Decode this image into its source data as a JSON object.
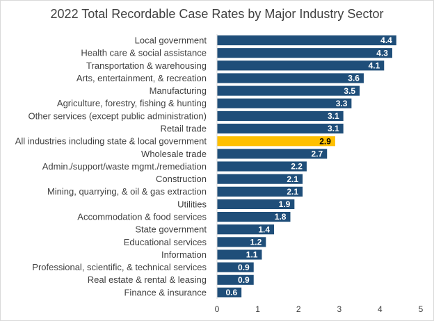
{
  "chart_data": {
    "type": "barh",
    "title": "2022 Total Recordable Case Rates by Major Industry Sector",
    "categories": [
      "Local government",
      "Health care & social assistance",
      "Transportation & warehousing",
      "Arts, entertainment, & recreation",
      "Manufacturing",
      "Agriculture, forestry, fishing & hunting",
      "Other services (except public administration)",
      "Retail trade",
      "All industries including state & local government",
      "Wholesale trade",
      "Admin./support/waste mgmt./remediation",
      "Construction",
      "Mining, quarrying, & oil & gas extraction",
      "Utilities",
      "Accommodation & food services",
      "State government",
      "Educational services",
      "Information",
      "Professional, scientific, & technical services",
      "Real estate & rental & leasing",
      "Finance & insurance"
    ],
    "values": [
      4.4,
      4.3,
      4.1,
      3.6,
      3.5,
      3.3,
      3.1,
      3.1,
      2.9,
      2.7,
      2.2,
      2.1,
      2.1,
      1.9,
      1.8,
      1.4,
      1.2,
      1.1,
      0.9,
      0.9,
      0.6
    ],
    "colors": [
      "#1f4e79",
      "#1f4e79",
      "#1f4e79",
      "#1f4e79",
      "#1f4e79",
      "#1f4e79",
      "#1f4e79",
      "#1f4e79",
      "#ffc000",
      "#1f4e79",
      "#1f4e79",
      "#1f4e79",
      "#1f4e79",
      "#1f4e79",
      "#1f4e79",
      "#1f4e79",
      "#1f4e79",
      "#1f4e79",
      "#1f4e79",
      "#1f4e79",
      "#1f4e79"
    ],
    "xlim": [
      0,
      5
    ],
    "xticks": [
      0,
      1,
      2,
      3,
      4,
      5
    ],
    "grid": false
  }
}
